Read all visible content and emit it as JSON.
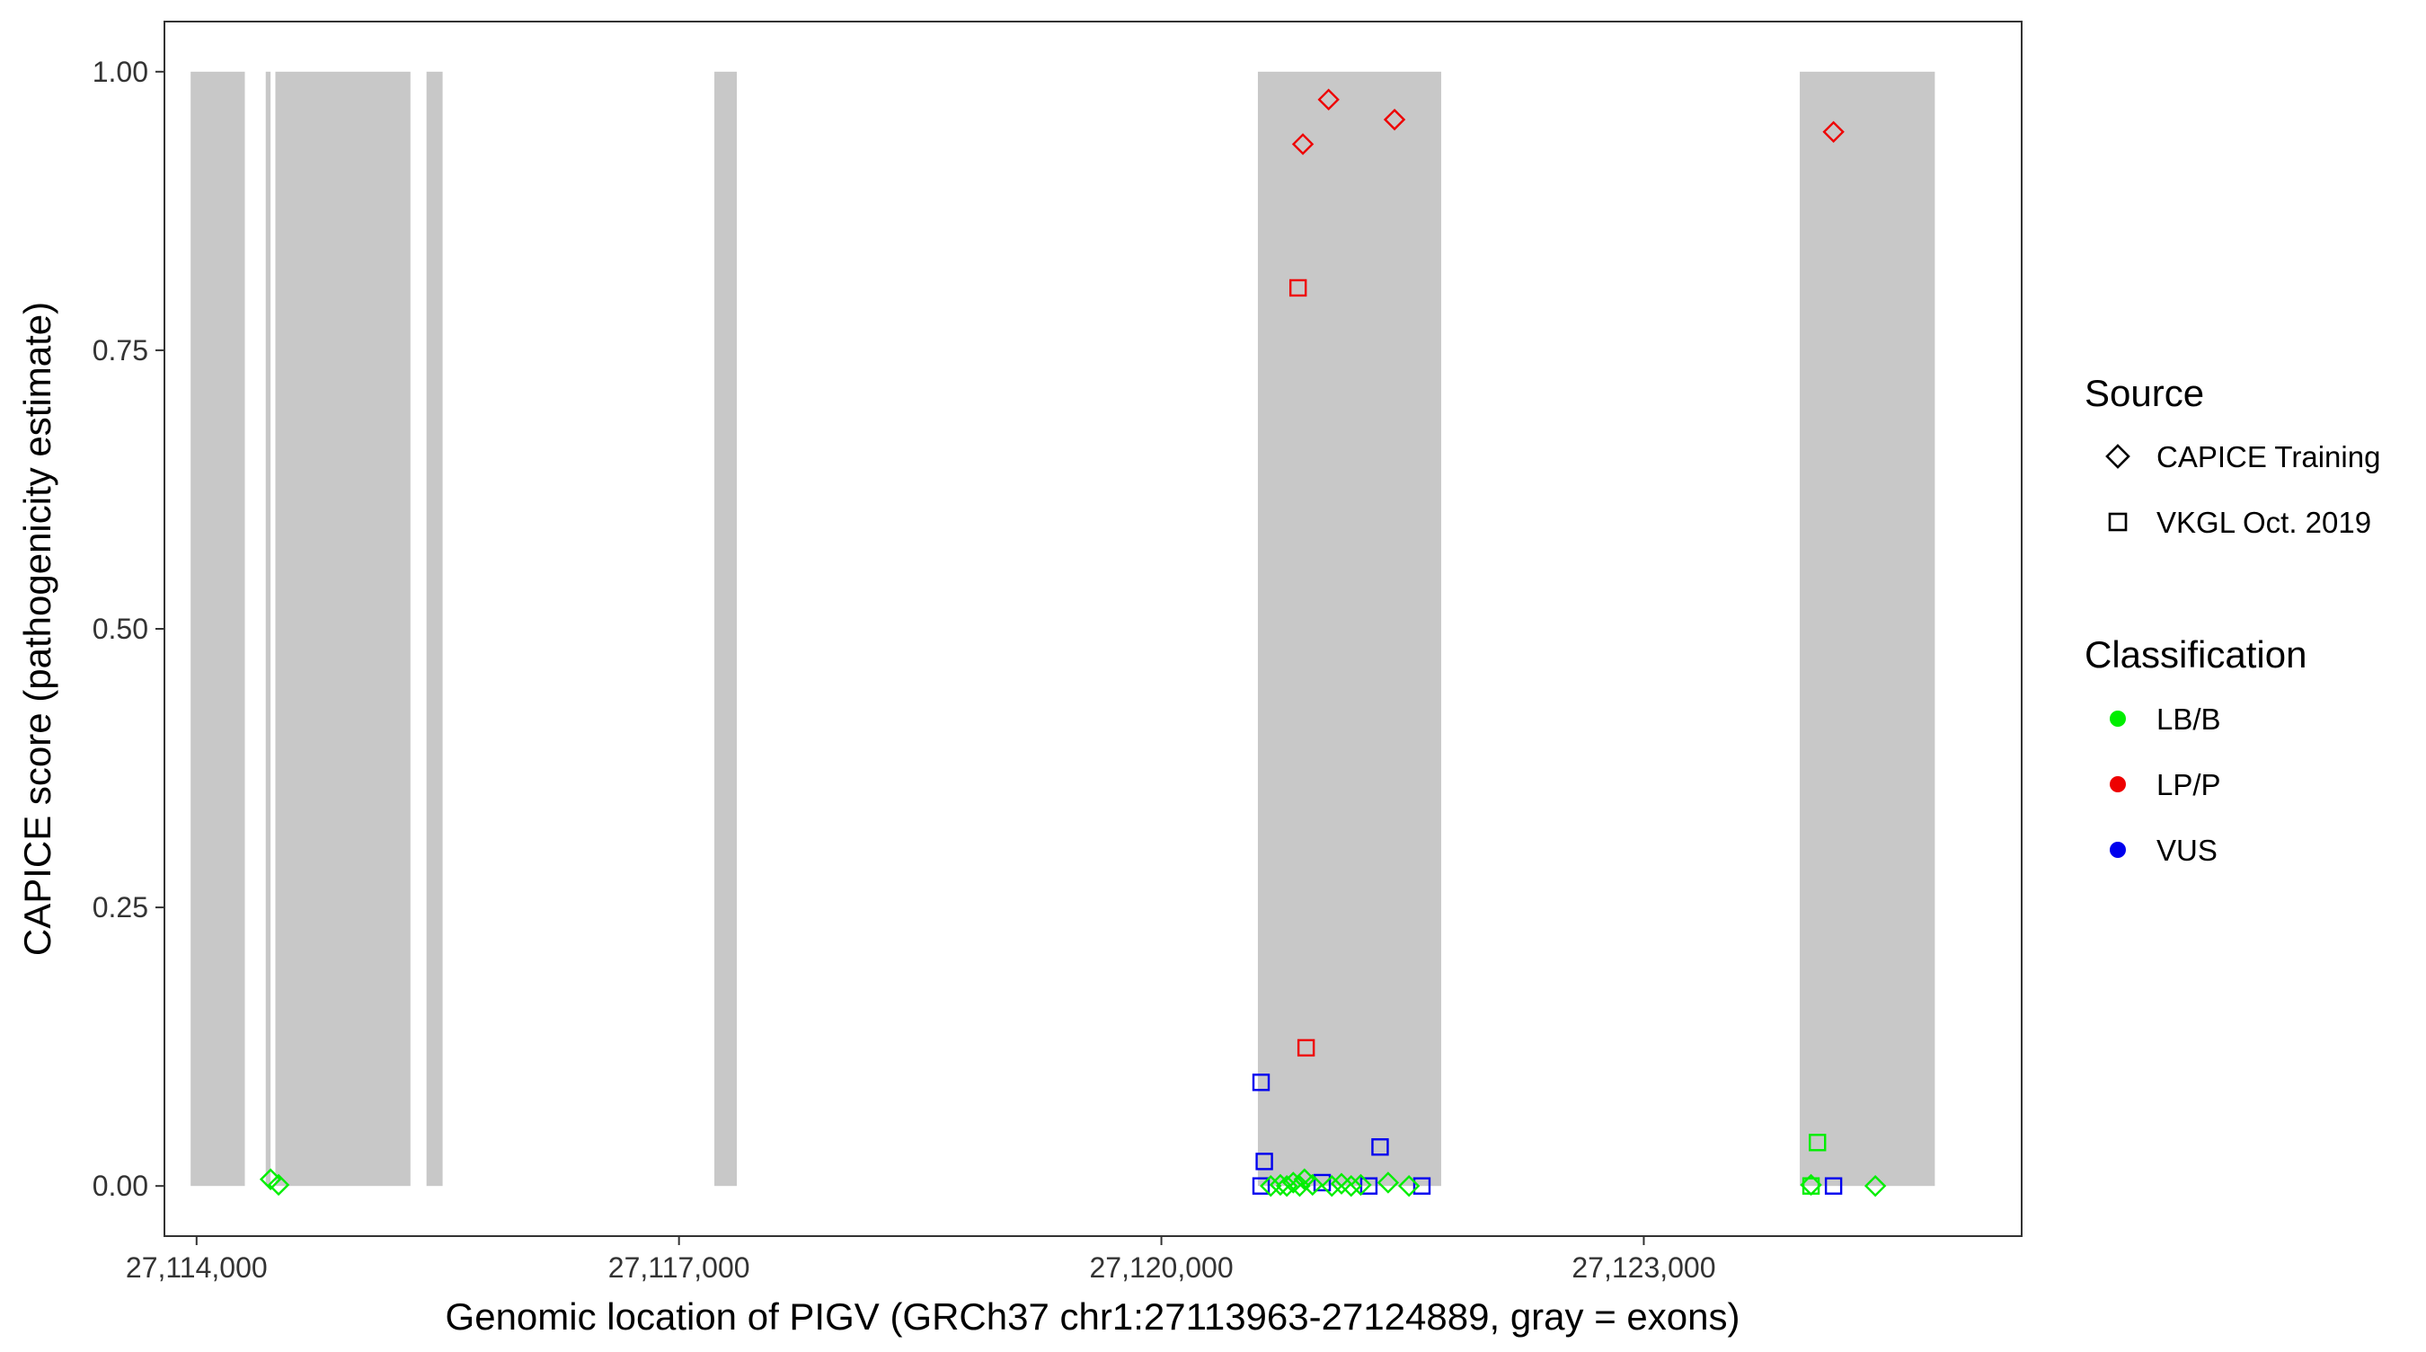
{
  "chart_data": {
    "type": "scatter",
    "xlabel": "Genomic location of PIGV (GRCh37 chr1:27113963-27124889, gray = exons)",
    "ylabel": "CAPICE score (pathogenicity estimate)",
    "xlim": [
      27113800,
      27125350
    ],
    "ylim": [
      -0.045,
      1.045
    ],
    "x_ticks": [
      27114000,
      27117000,
      27120000,
      27123000
    ],
    "x_tick_labels": [
      "27,114,000",
      "27,117,000",
      "27,120,000",
      "27,123,000"
    ],
    "y_ticks": [
      0,
      0.25,
      0.5,
      0.75,
      1.0
    ],
    "y_tick_labels": [
      "0.00",
      "0.25",
      "0.50",
      "0.75",
      "1.00"
    ],
    "grid": false,
    "exons": [
      {
        "start": 27113963,
        "end": 27114300
      },
      {
        "start": 27114430,
        "end": 27114460
      },
      {
        "start": 27114490,
        "end": 27115330
      },
      {
        "start": 27115430,
        "end": 27115530
      },
      {
        "start": 27117220,
        "end": 27117360
      },
      {
        "start": 27120600,
        "end": 27121740
      },
      {
        "start": 27123970,
        "end": 27124810
      }
    ],
    "colors": {
      "LB/B": "#00ee00",
      "LP/P": "#ee0000",
      "VUS": "#0000ee",
      "exon": "#c8c8c8"
    },
    "legend": {
      "placement": "right",
      "source": {
        "title": "Source",
        "entries": [
          {
            "label": "CAPICE Training",
            "shape": "diamond"
          },
          {
            "label": "VKGL Oct. 2019",
            "shape": "square"
          }
        ]
      },
      "classification": {
        "title": "Classification",
        "entries": [
          {
            "label": "LB/B",
            "key": "LB/B"
          },
          {
            "label": "LP/P",
            "key": "LP/P"
          },
          {
            "label": "VUS",
            "key": "VUS"
          }
        ]
      }
    },
    "points": [
      {
        "x": 27114460,
        "y": 0.006,
        "source": "CAPICE Training",
        "class": "LB/B"
      },
      {
        "x": 27114510,
        "y": 0.001,
        "source": "CAPICE Training",
        "class": "LB/B"
      },
      {
        "x": 27120880,
        "y": 0.935,
        "source": "CAPICE Training",
        "class": "LP/P"
      },
      {
        "x": 27121040,
        "y": 0.975,
        "source": "CAPICE Training",
        "class": "LP/P"
      },
      {
        "x": 27121450,
        "y": 0.957,
        "source": "CAPICE Training",
        "class": "LP/P"
      },
      {
        "x": 27124180,
        "y": 0.946,
        "source": "CAPICE Training",
        "class": "LP/P"
      },
      {
        "x": 27120850,
        "y": 0.806,
        "source": "VKGL Oct. 2019",
        "class": "LP/P"
      },
      {
        "x": 27120900,
        "y": 0.124,
        "source": "VKGL Oct. 2019",
        "class": "LP/P"
      },
      {
        "x": 27120620,
        "y": 0.093,
        "source": "VKGL Oct. 2019",
        "class": "VUS"
      },
      {
        "x": 27120640,
        "y": 0.022,
        "source": "VKGL Oct. 2019",
        "class": "VUS"
      },
      {
        "x": 27121360,
        "y": 0.035,
        "source": "VKGL Oct. 2019",
        "class": "VUS"
      },
      {
        "x": 27120620,
        "y": 0.0,
        "source": "VKGL Oct. 2019",
        "class": "VUS"
      },
      {
        "x": 27121000,
        "y": 0.003,
        "source": "VKGL Oct. 2019",
        "class": "VUS"
      },
      {
        "x": 27121290,
        "y": 0.0,
        "source": "VKGL Oct. 2019",
        "class": "VUS"
      },
      {
        "x": 27121620,
        "y": 0.0,
        "source": "VKGL Oct. 2019",
        "class": "VUS"
      },
      {
        "x": 27124180,
        "y": 0.0,
        "source": "VKGL Oct. 2019",
        "class": "VUS"
      },
      {
        "x": 27124080,
        "y": 0.039,
        "source": "VKGL Oct. 2019",
        "class": "LB/B"
      },
      {
        "x": 27124040,
        "y": 0.0,
        "source": "VKGL Oct. 2019",
        "class": "LB/B"
      },
      {
        "x": 27120680,
        "y": 0.0,
        "source": "CAPICE Training",
        "class": "LB/B"
      },
      {
        "x": 27120740,
        "y": 0.001,
        "source": "CAPICE Training",
        "class": "LB/B"
      },
      {
        "x": 27120780,
        "y": 0.0,
        "source": "CAPICE Training",
        "class": "LB/B"
      },
      {
        "x": 27120820,
        "y": 0.003,
        "source": "CAPICE Training",
        "class": "LB/B"
      },
      {
        "x": 27120860,
        "y": 0.0,
        "source": "CAPICE Training",
        "class": "LB/B"
      },
      {
        "x": 27120890,
        "y": 0.006,
        "source": "CAPICE Training",
        "class": "LB/B"
      },
      {
        "x": 27120940,
        "y": 0.001,
        "source": "CAPICE Training",
        "class": "LB/B"
      },
      {
        "x": 27121060,
        "y": 0.0,
        "source": "CAPICE Training",
        "class": "LB/B"
      },
      {
        "x": 27121120,
        "y": 0.002,
        "source": "CAPICE Training",
        "class": "LB/B"
      },
      {
        "x": 27121180,
        "y": 0.0,
        "source": "CAPICE Training",
        "class": "LB/B"
      },
      {
        "x": 27121240,
        "y": 0.001,
        "source": "CAPICE Training",
        "class": "LB/B"
      },
      {
        "x": 27121410,
        "y": 0.003,
        "source": "CAPICE Training",
        "class": "LB/B"
      },
      {
        "x": 27121540,
        "y": 0.0,
        "source": "CAPICE Training",
        "class": "LB/B"
      },
      {
        "x": 27124040,
        "y": 0.001,
        "source": "CAPICE Training",
        "class": "LB/B"
      },
      {
        "x": 27124440,
        "y": 0.0,
        "source": "CAPICE Training",
        "class": "LB/B"
      }
    ]
  }
}
